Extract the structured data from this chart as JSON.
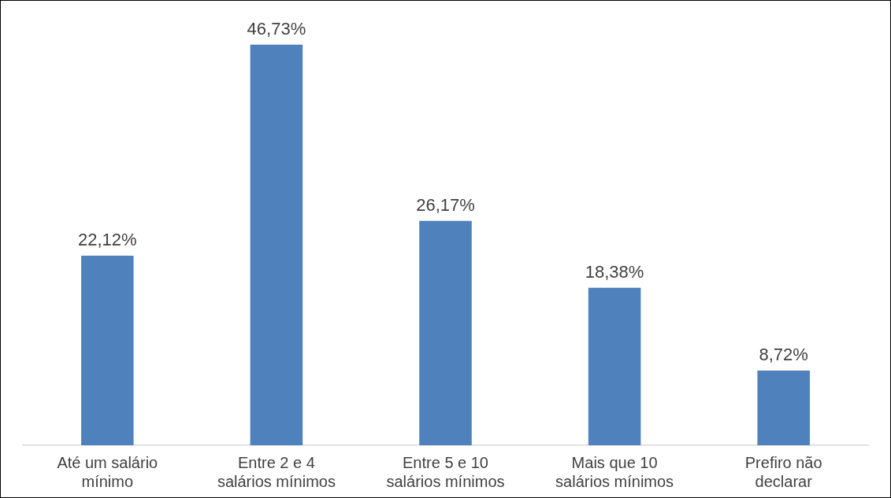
{
  "chart_data": {
    "type": "bar",
    "categories": [
      "Até um salário mínimo",
      "Entre 2 e 4 salários mínimos",
      "Entre 5 e 10 salários mínimos",
      "Mais que 10 salários mínimos",
      "Prefiro não declarar"
    ],
    "values": [
      22.12,
      46.73,
      26.17,
      18.38,
      8.72
    ],
    "value_labels": [
      "22,12%",
      "46,73%",
      "26,17%",
      "18,38%",
      "8,72%"
    ],
    "color": "#4f81bd"
  }
}
